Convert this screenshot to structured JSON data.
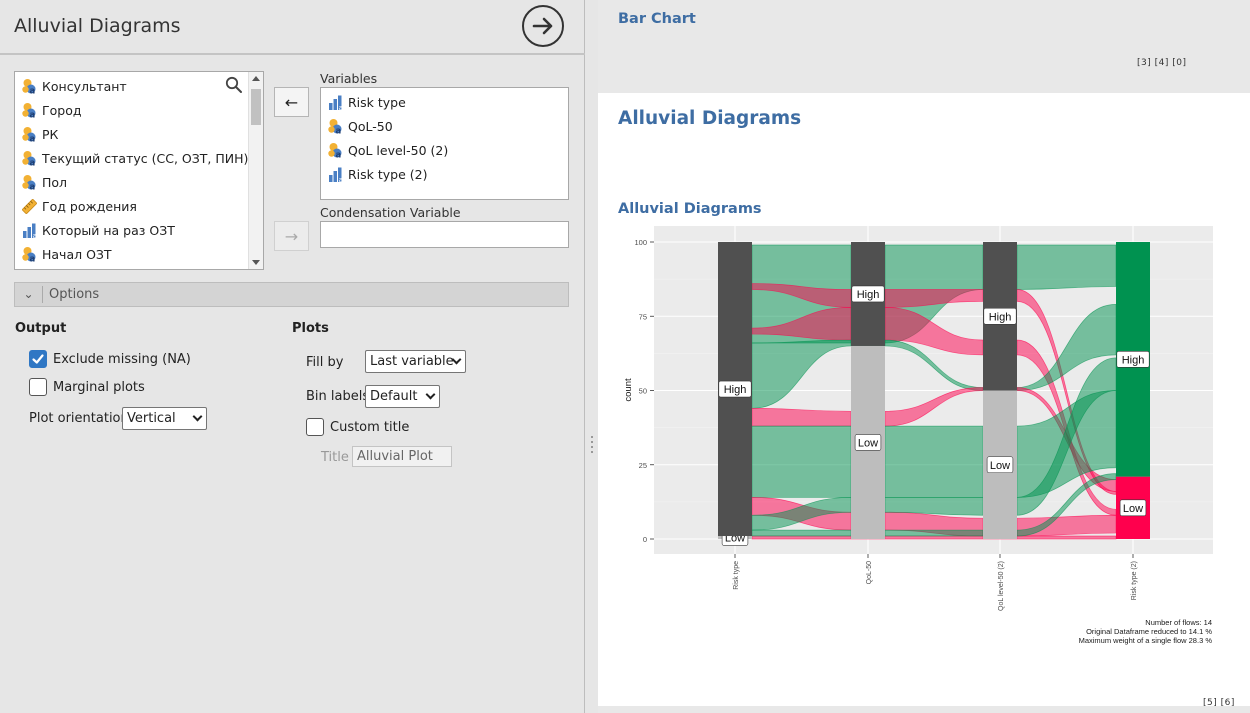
{
  "analysis": {
    "title": "Alluvial Diagrams"
  },
  "source_variables": [
    {
      "label": "Консультант",
      "icon": "nominal-text-icon"
    },
    {
      "label": "Город",
      "icon": "nominal-text-icon"
    },
    {
      "label": "РК",
      "icon": "nominal-text-icon"
    },
    {
      "label": "Текущий статус (СС, ОЗТ, ПИН)",
      "icon": "nominal-text-icon"
    },
    {
      "label": "Пол",
      "icon": "nominal-text-icon"
    },
    {
      "label": "Год рождения",
      "icon": "ruler-icon"
    },
    {
      "label": "Который на раз ОЗТ",
      "icon": "ordinal-icon"
    },
    {
      "label": "Начал ОЗТ",
      "icon": "nominal-text-icon"
    }
  ],
  "variables_panel": {
    "label": "Variables",
    "items": [
      {
        "label": "Risk type",
        "icon": "ordinal-icon"
      },
      {
        "label": "QoL-50",
        "icon": "nominal-text-icon"
      },
      {
        "label": "QoL level-50 (2)",
        "icon": "nominal-text-icon"
      },
      {
        "label": "Risk type (2)",
        "icon": "ordinal-icon"
      }
    ]
  },
  "condensation_panel": {
    "label": "Condensation Variable",
    "value": ""
  },
  "options": {
    "label": "Options",
    "output_heading": "Output",
    "plots_heading": "Plots",
    "exclude_missing": {
      "label": "Exclude missing (NA)",
      "checked": true
    },
    "marginal_plots": {
      "label": "Marginal plots",
      "checked": false
    },
    "plot_orientation": {
      "label": "Plot orientation",
      "value": "Vertical"
    },
    "fill_by": {
      "label": "Fill by",
      "value": "Last variable"
    },
    "bin_labels": {
      "label": "Bin labels",
      "value": "Default"
    },
    "custom_title": {
      "label": "Custom title",
      "checked": false
    },
    "title": {
      "label": "Title",
      "placeholder": "Alluvial Plot"
    }
  },
  "results": {
    "bar_chart_title": "Bar Chart",
    "bar_chart_refs": "[3]  [4]  [0]",
    "section_title": "Alluvial Diagrams",
    "plot_title": "Alluvial Diagrams",
    "footer_refs": "[5]  [6]"
  },
  "chart_data": {
    "type": "alluvial",
    "ylabel": "count",
    "ylim": [
      0,
      100
    ],
    "yticks": [
      0,
      25,
      50,
      75,
      100
    ],
    "axes": [
      "Risk type",
      "QoL-50",
      "QoL level-50 (2)",
      "Risk type (2)"
    ],
    "strata": [
      [
        {
          "label": "Low",
          "value": 1
        },
        {
          "label": "High",
          "value": 99
        }
      ],
      [
        {
          "label": "Low",
          "value": 65
        },
        {
          "label": "High",
          "value": 35
        }
      ],
      [
        {
          "label": "Low",
          "value": 50
        },
        {
          "label": "High",
          "value": 50
        }
      ],
      [
        {
          "label": "Low",
          "value": 21
        },
        {
          "label": "High",
          "value": 79
        }
      ]
    ],
    "fill_colors": {
      "High": "#009250",
      "Low": "#FF004D"
    },
    "stratum_colors": {
      "High": "#505050",
      "Low": "#bdbdbd"
    },
    "annotations": [
      "Number of flows: 14",
      "Original Dataframe reduced to 14.1 %",
      "Maximum weight of a single flow 28.3 %"
    ]
  }
}
